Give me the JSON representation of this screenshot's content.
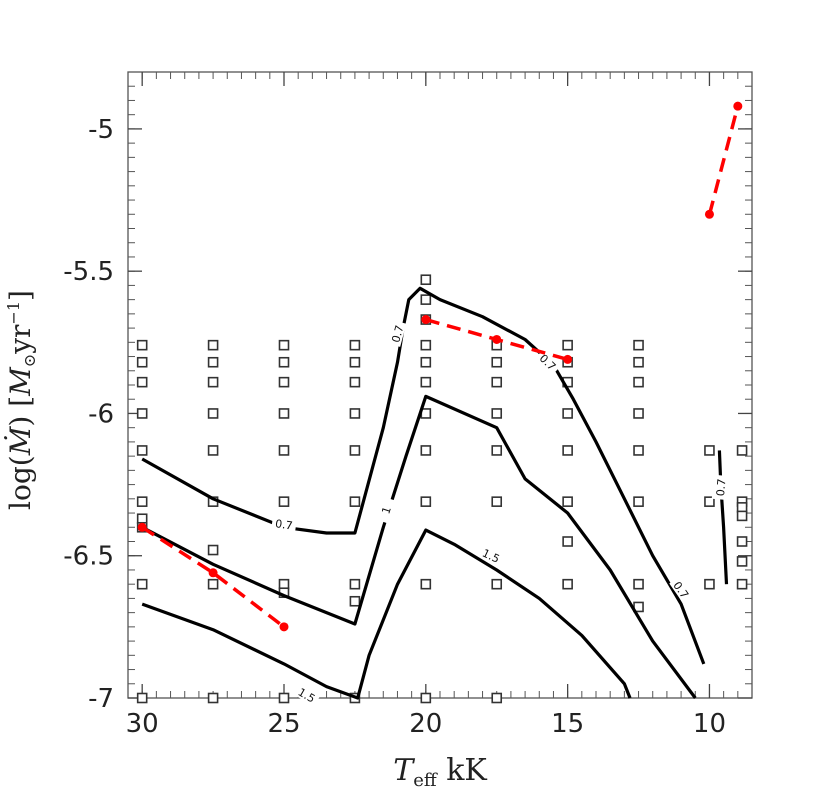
{
  "chart_data": {
    "type": "line",
    "title": "",
    "xlabel": {
      "var": "T",
      "sub": "eff",
      "unit": " kK"
    },
    "ylabel": {
      "prefix": "log(",
      "var": "Ṁ",
      "mid": ") [",
      "m": "M",
      "sun": "⊙",
      "yr": "yr",
      "exp": "−1",
      "suffix": "]"
    },
    "x_inverted": true,
    "xlim": [
      30.5,
      8.5
    ],
    "ylim": [
      -7.0,
      -4.8
    ],
    "x_ticks": [
      30,
      25,
      20,
      15,
      10
    ],
    "x_tick_labels": [
      "30",
      "25",
      "20",
      "15",
      "10"
    ],
    "y_ticks": [
      -7,
      -6.5,
      -6,
      -5.5,
      -5
    ],
    "y_tick_labels": [
      "-7",
      "-6.5",
      "-6",
      "-5.5",
      "-5"
    ],
    "x_minor_step": 0.5,
    "y_minor_step": 0.05,
    "grid": false,
    "legend": "none",
    "colors": {
      "contour": "#000000",
      "observed": "#ff0000",
      "grid_marker": "#333333"
    },
    "model_grid": [
      {
        "x": 30,
        "y": [
          -5.76,
          -5.82,
          -5.89,
          -6.0,
          -6.13,
          -6.31,
          -6.37,
          -6.4,
          -6.6,
          -7.0
        ]
      },
      {
        "x": 27.5,
        "y": [
          -5.76,
          -5.82,
          -5.89,
          -6.0,
          -6.13,
          -6.31,
          -6.48,
          -6.6,
          -7.0
        ]
      },
      {
        "x": 25,
        "y": [
          -5.76,
          -5.82,
          -5.89,
          -6.0,
          -6.13,
          -6.31,
          -6.6,
          -6.63,
          -7.0
        ]
      },
      {
        "x": 22.5,
        "y": [
          -5.76,
          -5.82,
          -5.89,
          -6.0,
          -6.13,
          -6.31,
          -6.6,
          -6.66,
          -7.0
        ]
      },
      {
        "x": 20,
        "y": [
          -5.53,
          -5.6,
          -5.67,
          -5.76,
          -5.82,
          -5.89,
          -6.0,
          -6.13,
          -6.31,
          -6.6,
          -7.0
        ]
      },
      {
        "x": 17.5,
        "y": [
          -5.76,
          -5.82,
          -5.89,
          -6.0,
          -6.13,
          -6.31,
          -6.6,
          -7.0
        ]
      },
      {
        "x": 15,
        "y": [
          -5.76,
          -5.82,
          -5.89,
          -6.0,
          -6.13,
          -6.31,
          -6.45,
          -6.6
        ]
      },
      {
        "x": 12.5,
        "y": [
          -5.76,
          -5.82,
          -5.89,
          -6.0,
          -6.13,
          -6.31,
          -6.6,
          -6.68
        ]
      },
      {
        "x": 10,
        "y": [
          -6.13,
          -6.31,
          -6.6
        ]
      },
      {
        "x": 8.85,
        "y": [
          -6.13,
          -6.31,
          -6.33,
          -6.36,
          -6.45,
          -6.52,
          -6.6
        ]
      }
    ],
    "contours": [
      {
        "label": "0.7",
        "label_at": [
          -6.39,
          25.0
        ],
        "label_rot": 8,
        "points": [
          [
            30,
            -6.16
          ],
          [
            27.5,
            -6.3
          ],
          [
            25,
            -6.4
          ],
          [
            23.5,
            -6.42
          ],
          [
            22.5,
            -6.42
          ],
          [
            21.5,
            -6.05
          ],
          [
            21,
            -5.82
          ],
          [
            20.8,
            -5.7
          ],
          [
            20.6,
            -5.6
          ],
          [
            20.2,
            -5.56
          ],
          [
            19.5,
            -5.6
          ],
          [
            18,
            -5.66
          ],
          [
            16.5,
            -5.74
          ],
          [
            15.5,
            -5.83
          ],
          [
            14.8,
            -5.95
          ],
          [
            14,
            -6.1
          ],
          [
            13,
            -6.3
          ],
          [
            12,
            -6.5
          ],
          [
            11,
            -6.67
          ],
          [
            10.2,
            -6.88
          ]
        ]
      },
      {
        "label": "0.7",
        "label_at": [
          -5.72,
          21.0
        ],
        "label_rot": -75,
        "points": null,
        "hidden_label_only": true
      },
      {
        "label": "0.7",
        "label_at": [
          -5.82,
          15.7
        ],
        "label_rot": 45,
        "points": null,
        "hidden_label_only": true
      },
      {
        "label": "0.7",
        "label_at": [
          -6.62,
          11.0
        ],
        "label_rot": 55,
        "points": null,
        "hidden_label_only": true
      },
      {
        "label": "0.7",
        "label_at": [
          -6.26,
          9.6
        ],
        "label_rot": -85,
        "points": [
          [
            9.65,
            -6.13
          ],
          [
            9.6,
            -6.25
          ],
          [
            9.5,
            -6.4
          ],
          [
            9.4,
            -6.6
          ]
        ]
      },
      {
        "label": "1",
        "label_at": [
          -6.34,
          21.4
        ],
        "label_rot": -72,
        "points": [
          [
            30,
            -6.4
          ],
          [
            27.5,
            -6.53
          ],
          [
            25,
            -6.64
          ],
          [
            22.5,
            -6.74
          ],
          [
            21.5,
            -6.4
          ],
          [
            20.7,
            -6.15
          ],
          [
            20,
            -5.94
          ],
          [
            17.5,
            -6.05
          ],
          [
            16.5,
            -6.23
          ],
          [
            15,
            -6.35
          ],
          [
            13.5,
            -6.55
          ],
          [
            12,
            -6.8
          ],
          [
            10.5,
            -7.0
          ]
        ]
      },
      {
        "label": "1.5",
        "label_at": [
          -6.5,
          17.7
        ],
        "label_rot": 25,
        "points": [
          [
            30,
            -6.67
          ],
          [
            27.5,
            -6.76
          ],
          [
            25,
            -6.88
          ],
          [
            23.5,
            -6.96
          ],
          [
            22.4,
            -7.0
          ],
          [
            22,
            -6.85
          ],
          [
            21,
            -6.6
          ],
          [
            20,
            -6.41
          ],
          [
            19,
            -6.46
          ],
          [
            17.5,
            -6.55
          ],
          [
            16,
            -6.65
          ],
          [
            14.5,
            -6.78
          ],
          [
            13,
            -6.95
          ],
          [
            12.8,
            -7.0
          ]
        ]
      },
      {
        "label": "1.5",
        "label_at": [
          -6.99,
          24.2
        ],
        "label_rot": 30,
        "points": null,
        "hidden_label_only": true
      }
    ],
    "observed": [
      {
        "points": [
          [
            30,
            -6.4
          ],
          [
            27.5,
            -6.56
          ],
          [
            25,
            -6.75
          ]
        ]
      },
      {
        "points": [
          [
            20,
            -5.67
          ],
          [
            17.5,
            -5.74
          ],
          [
            15,
            -5.81
          ]
        ]
      },
      {
        "points": [
          [
            10,
            -5.3
          ],
          [
            9.0,
            -4.92
          ]
        ]
      }
    ]
  }
}
